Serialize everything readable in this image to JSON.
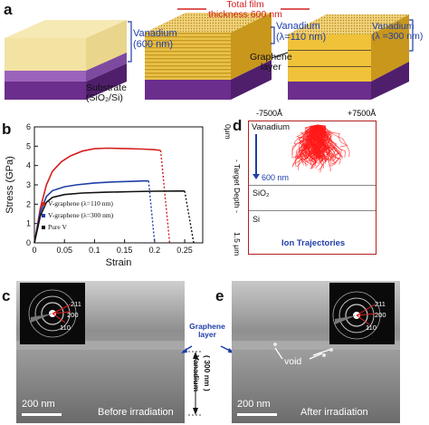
{
  "panel_a": {
    "letter": "a",
    "vanadium_600": [
      "Vanadium",
      "(600 nm)"
    ],
    "substrate": [
      "Substrate",
      "(SiO₂/Si)"
    ],
    "total_film": [
      "Total film",
      "thickness 600 nm"
    ],
    "vanadium_110": [
      "Vanadium",
      "(λ=110 nm)"
    ],
    "graphene_layer": [
      "Graphene",
      "layer"
    ],
    "vanadium_300": [
      "Vanadium",
      "(λ =300 nm)"
    ]
  },
  "panel_b": {
    "letter": "b",
    "chart_data": {
      "type": "line",
      "xlabel": "Strain",
      "ylabel": "Stress (GPa)",
      "xlim": [
        0,
        0.28
      ],
      "ylim": [
        0,
        6
      ],
      "xticks": [
        0,
        0.05,
        0.1,
        0.15,
        0.2,
        0.25
      ],
      "xticklabels": [
        "0",
        "0.05",
        "0.1",
        "0.15",
        "0.2",
        "0.25"
      ],
      "yticks": [
        0,
        1,
        2,
        3,
        4,
        5,
        6
      ],
      "yticklabels": [
        "0",
        "1",
        "2",
        "3",
        "4",
        "5",
        "6"
      ],
      "legend_position": "lower-left",
      "series": [
        {
          "name": "V-graphene (λ=110 nm)",
          "color": "#d42020",
          "style": "solid-with-dotted-unload",
          "x": [
            0,
            0.01,
            0.02,
            0.03,
            0.045,
            0.06,
            0.08,
            0.1,
            0.12,
            0.15,
            0.18,
            0.2,
            0.21,
            0.225
          ],
          "y": [
            0,
            1.8,
            3.0,
            3.7,
            4.2,
            4.5,
            4.75,
            4.87,
            4.9,
            4.88,
            4.85,
            4.82,
            4.78,
            0
          ]
        },
        {
          "name": "V-graphene (λ=300 nm)",
          "color": "#1f3ea8",
          "style": "solid-with-dotted-unload",
          "x": [
            0,
            0.01,
            0.02,
            0.03,
            0.05,
            0.07,
            0.1,
            0.13,
            0.16,
            0.18,
            0.19,
            0.2
          ],
          "y": [
            0,
            1.6,
            2.4,
            2.7,
            2.9,
            3.0,
            3.1,
            3.15,
            3.18,
            3.2,
            3.2,
            0
          ]
        },
        {
          "name": "Pure V",
          "color": "#111111",
          "style": "solid-with-dotted-unload",
          "x": [
            0,
            0.01,
            0.02,
            0.03,
            0.05,
            0.08,
            0.12,
            0.16,
            0.2,
            0.24,
            0.25,
            0.265
          ],
          "y": [
            0,
            1.4,
            2.1,
            2.35,
            2.5,
            2.58,
            2.62,
            2.65,
            2.67,
            2.68,
            2.68,
            0
          ]
        }
      ]
    }
  },
  "panel_d": {
    "letter": "d",
    "tick_left": "-7500Å",
    "tick_right": "+7500Å",
    "depth_top": "0μm",
    "depth_axis": "- Target Depth -",
    "depth_bottom": "1.5 μm",
    "layer_vanadium": "Vanadium",
    "arrow_label": "600 nm",
    "layer_sio2": "SiO₂",
    "layer_si": "Si",
    "caption": "Ion Trajectories",
    "cloud_color": "#ff1a1a"
  },
  "panel_c": {
    "letter": "c",
    "scale_bar": "200 nm",
    "caption": "Before irradiation",
    "diffraction_rings": [
      "211",
      "200",
      "110"
    ]
  },
  "middle": {
    "graphene_layer": [
      "Graphene",
      "layer"
    ],
    "vanadium_300": "Vanadium",
    "vanadium_nm": "( 300 nm )"
  },
  "panel_e": {
    "letter": "e",
    "scale_bar": "200 nm",
    "caption": "After irradiation",
    "void": "void",
    "diffraction_rings": [
      "211",
      "200",
      "110"
    ]
  }
}
